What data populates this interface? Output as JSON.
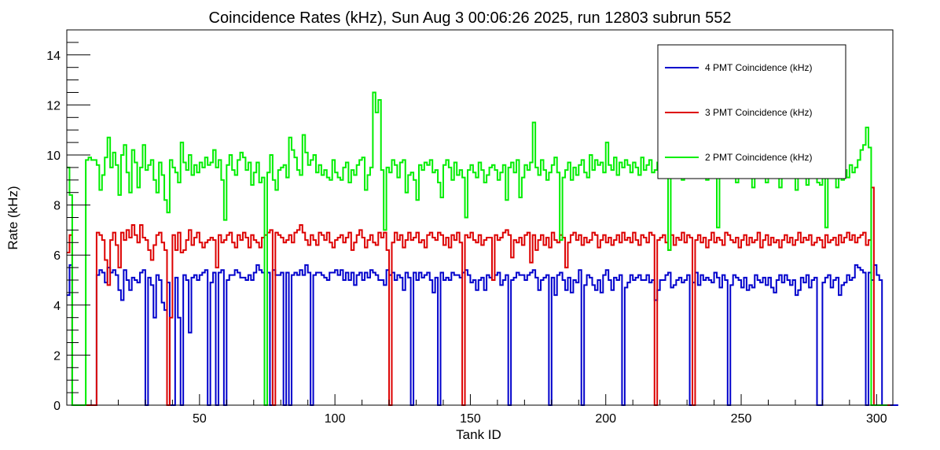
{
  "chart_data": {
    "type": "line",
    "title": "Coincidence Rates (kHz), Sun Aug  3 00:06:26 2025, run 12803 subrun 552",
    "xlabel": "Tank ID",
    "ylabel": "Rate (kHz)",
    "xlim": [
      1,
      306
    ],
    "ylim": [
      0,
      15
    ],
    "x_ticks": [
      50,
      100,
      150,
      200,
      250,
      300
    ],
    "y_ticks": [
      0,
      2,
      4,
      6,
      8,
      10,
      12,
      14
    ],
    "grid": false,
    "legend_position": "top-right",
    "bin_start": 1,
    "bin_width": 1,
    "series": [
      {
        "name": "4 PMT Coincidence (kHz)",
        "color": "#0000cc",
        "values": [
          4.4,
          5.6,
          0,
          0,
          0,
          0,
          0,
          0,
          0,
          0,
          0,
          5.2,
          5.4,
          5.3,
          4.9,
          5.5,
          5.3,
          5.4,
          5.2,
          4.6,
          4.2,
          5.4,
          5.0,
          4.6,
          5.1,
          5.0,
          4.9,
          5.3,
          5.4,
          0,
          5.1,
          4.8,
          3.5,
          5.2,
          5.0,
          4.1,
          3.8,
          4.9,
          0,
          0,
          5.1,
          3.5,
          0,
          5.2,
          5.0,
          2.9,
          5.1,
          5.2,
          5.0,
          5.2,
          5.3,
          5.4,
          0,
          4.9,
          5.3,
          0,
          5.3,
          5.4,
          0,
          5.0,
          5.2,
          5.2,
          5.4,
          5.3,
          5.1,
          5.1,
          5.0,
          5.2,
          5.0,
          5.3,
          5.6,
          5.4,
          5.3,
          0,
          5.3,
          0,
          5.4,
          5.2,
          5.2,
          5.3,
          0,
          5.3,
          0,
          5.2,
          5.3,
          5.2,
          5.4,
          5.2,
          5.6,
          5.3,
          0,
          5.2,
          5.3,
          5.3,
          5.2,
          5.1,
          5.0,
          5.3,
          5.3,
          5.4,
          5.2,
          5.4,
          5.0,
          5.3,
          5.0,
          5.3,
          4.8,
          5.2,
          5.3,
          5.0,
          5.3,
          5.1,
          5.4,
          5.3,
          5.2,
          5.0,
          5.0,
          4.8,
          5.4,
          5.2,
          5.3,
          5.0,
          5.2,
          5.1,
          4.6,
          5.3,
          5.1,
          0,
          5.3,
          5.0,
          5.3,
          5.1,
          5.2,
          5.3,
          5.0,
          4.5,
          5.1,
          0,
          5.3,
          5.0,
          5.1,
          5.0,
          5.3,
          5.2,
          5.2,
          5.1,
          5.3,
          5.4,
          5.2,
          4.9,
          5.0,
          4.6,
          5.0,
          5.1,
          4.6,
          5.2,
          5.1,
          5.0,
          5.2,
          5.3,
          4.8,
          5.0,
          5.2,
          0,
          5.0,
          5.1,
          5.3,
          5.2,
          5.2,
          5.0,
          5.2,
          5.3,
          5.4,
          5.1,
          4.6,
          5.0,
          5.1,
          5.2,
          0,
          5.1,
          4.4,
          5.2,
          5.3,
          5.0,
          4.6,
          5.1,
          4.5,
          5.0,
          4.9,
          5.4,
          0,
          4.8,
          5.2,
          5.1,
          4.8,
          4.6,
          5.0,
          4.5,
          5.2,
          5.4,
          5.0,
          4.6,
          5.1,
          5.0,
          5.2,
          0,
          4.7,
          4.9,
          5.2,
          5.0,
          5.1,
          5.2,
          5.0,
          5.0,
          5.2,
          4.9,
          5.0,
          4.2,
          4.6,
          5.0,
          5.0,
          5.2,
          5.3,
          4.7,
          4.8,
          5.0,
          5.1,
          4.9,
          5.0,
          5.2,
          0,
          4.9,
          5.3,
          4.8,
          5.2,
          5.0,
          5.1,
          5.0,
          4.9,
          5.3,
          5.1,
          4.7,
          5.2,
          5.0,
          0,
          4.8,
          5.2,
          5.1,
          5.0,
          4.7,
          5.1,
          4.6,
          4.8,
          4.7,
          5.2,
          5.0,
          4.9,
          5.1,
          4.8,
          5.1,
          4.7,
          4.5,
          5.0,
          5.2,
          4.9,
          5.2,
          5.0,
          4.8,
          5.0,
          4.4,
          4.6,
          5.1,
          4.9,
          5.2,
          4.7,
          5.0,
          5.1,
          0,
          0,
          4.9,
          5.1,
          5.2,
          4.7,
          5.0,
          5.1,
          4.4,
          4.8,
          4.9,
          5.2,
          5.0,
          5.1,
          5.6,
          5.5,
          5.4,
          5.3,
          0,
          5.3,
          5.0,
          5.6,
          5.2,
          5.0,
          0,
          0,
          0,
          0,
          0,
          0
        ]
      },
      {
        "name": "3 PMT Coincidence (kHz)",
        "color": "#dd0000",
        "values": [
          6.1,
          6.8,
          0,
          0,
          0,
          0,
          0,
          0,
          0,
          0,
          0,
          6.9,
          6.8,
          6.6,
          5.8,
          4.8,
          6.6,
          6.9,
          6.4,
          5.5,
          6.9,
          6.6,
          7.0,
          6.7,
          7.2,
          6.8,
          6.5,
          7.2,
          6.7,
          6.6,
          6.2,
          5.8,
          6.4,
          6.8,
          6.9,
          6.5,
          6.2,
          0,
          3.5,
          6.8,
          6.2,
          6.9,
          6.1,
          6.2,
          6.6,
          7.0,
          6.4,
          6.7,
          6.9,
          6.5,
          6.3,
          6.5,
          6.6,
          6.7,
          6.6,
          5.5,
          6.8,
          6.5,
          6.6,
          6.8,
          6.9,
          6.5,
          6.3,
          6.8,
          6.6,
          6.9,
          6.7,
          6.3,
          6.8,
          6.6,
          6.5,
          6.3,
          6.7,
          6.8,
          6.9,
          7.0,
          0,
          6.9,
          6.8,
          6.7,
          6.5,
          6.6,
          6.8,
          6.5,
          6.9,
          7.0,
          7.2,
          6.9,
          6.6,
          6.4,
          6.8,
          6.6,
          6.4,
          6.9,
          6.8,
          6.6,
          6.9,
          6.5,
          6.3,
          6.6,
          6.7,
          6.8,
          6.5,
          6.7,
          6.9,
          6.2,
          6.5,
          6.8,
          7.0,
          6.7,
          6.3,
          6.6,
          6.8,
          6.5,
          6.4,
          6.9,
          6.7,
          6.9,
          6.2,
          0,
          6.5,
          6.9,
          6.6,
          6.8,
          6.3,
          6.6,
          6.9,
          6.6,
          6.7,
          6.9,
          6.5,
          6.6,
          6.3,
          6.8,
          6.9,
          6.7,
          6.6,
          6.9,
          6.8,
          6.4,
          6.7,
          6.3,
          6.8,
          6.6,
          6.9,
          6.5,
          0,
          6.8,
          6.7,
          6.9,
          6.6,
          6.5,
          6.8,
          6.4,
          6.6,
          6.7,
          6.7,
          5.0,
          6.8,
          6.6,
          6.7,
          6.9,
          7.0,
          6.8,
          5.9,
          6.6,
          6.5,
          6.7,
          6.4,
          6.8,
          6.9,
          5.7,
          6.8,
          6.2,
          6.6,
          6.8,
          6.4,
          6.7,
          6.3,
          6.9,
          6.6,
          6.5,
          6.8,
          6.7,
          5.5,
          6.5,
          6.8,
          6.9,
          6.6,
          6.8,
          6.4,
          6.7,
          6.5,
          6.6,
          6.9,
          6.8,
          6.3,
          6.6,
          6.8,
          6.5,
          6.7,
          6.4,
          6.6,
          6.8,
          6.5,
          6.9,
          6.6,
          6.7,
          6.5,
          6.9,
          6.6,
          6.4,
          6.8,
          6.7,
          6.5,
          6.9,
          6.8,
          0,
          6.6,
          6.7,
          6.8,
          6.5,
          6.2,
          6.8,
          6.4,
          6.7,
          6.6,
          6.9,
          6.5,
          6.8,
          6.7,
          0,
          6.6,
          6.8,
          6.5,
          6.7,
          6.3,
          6.6,
          6.9,
          6.5,
          6.7,
          6.6,
          6.4,
          6.9,
          6.8,
          6.6,
          6.5,
          6.7,
          6.3,
          6.6,
          6.8,
          6.4,
          6.7,
          6.5,
          6.6,
          6.9,
          6.3,
          6.6,
          6.8,
          6.4,
          6.7,
          6.5,
          6.6,
          6.3,
          6.6,
          6.8,
          6.5,
          6.7,
          6.4,
          6.6,
          6.9,
          6.5,
          6.7,
          6.6,
          6.8,
          6.4,
          6.5,
          6.7,
          6.6,
          6.3,
          6.8,
          6.5,
          6.6,
          6.7,
          6.4,
          6.8,
          6.5,
          6.7,
          6.9,
          6.6,
          6.8,
          6.5,
          6.7,
          6.8,
          6.9,
          6.4,
          6.6,
          8.7,
          0,
          0,
          0,
          0,
          0,
          0
        ]
      },
      {
        "name": "2 PMT Coincidence (kHz)",
        "color": "#00ee00",
        "values": [
          9.5,
          8.4,
          0,
          0,
          0,
          0,
          0,
          9.8,
          9.9,
          9.8,
          9.8,
          9.6,
          8.6,
          9.2,
          9.9,
          10.7,
          9.5,
          10.1,
          9.6,
          8.4,
          10.0,
          10.4,
          9.3,
          8.5,
          10.2,
          9.7,
          8.7,
          9.5,
          10.4,
          9.4,
          9.6,
          9.8,
          9.0,
          8.5,
          9.7,
          9.2,
          8.2,
          7.7,
          9.8,
          9.5,
          9.3,
          8.9,
          10.5,
          9.7,
          9.4,
          10.0,
          9.2,
          9.6,
          9.3,
          9.7,
          9.5,
          9.9,
          9.6,
          9.7,
          10.2,
          9.5,
          9.8,
          9.0,
          7.4,
          9.6,
          10.0,
          9.4,
          9.2,
          9.8,
          10.1,
          9.9,
          9.4,
          9.7,
          8.8,
          9.3,
          9.7,
          8.9,
          9.1,
          0,
          9.3,
          10.0,
          9.0,
          8.6,
          9.4,
          9.5,
          9.6,
          9.1,
          10.7,
          10.2,
          9.9,
          9.4,
          9.2,
          10.8,
          10.1,
          9.6,
          9.8,
          10.0,
          9.3,
          9.6,
          9.2,
          9.4,
          9.1,
          9.0,
          9.8,
          9.3,
          9.1,
          9.0,
          9.5,
          9.7,
          8.9,
          9.4,
          9.2,
          9.6,
          9.8,
          9.9,
          8.6,
          9.2,
          9.5,
          12.5,
          11.7,
          12.2,
          9.4,
          7.0,
          9.5,
          9.3,
          9.8,
          9.6,
          9.1,
          9.7,
          9.8,
          8.5,
          9.2,
          9.3,
          9.0,
          8.2,
          9.6,
          9.4,
          9.7,
          9.6,
          9.8,
          9.3,
          9.4,
          8.9,
          8.3,
          9.6,
          9.8,
          9.5,
          9.0,
          9.7,
          9.2,
          9.4,
          9.1,
          7.5,
          9.4,
          9.6,
          9.3,
          9.1,
          9.7,
          9.4,
          8.9,
          9.2,
          9.5,
          9.6,
          9.4,
          9.0,
          9.3,
          9.6,
          8.2,
          9.5,
          9.7,
          9.3,
          9.8,
          8.3,
          9.1,
          9.6,
          9.4,
          9.7,
          11.3,
          9.5,
          9.2,
          9.8,
          9.4,
          9.0,
          9.3,
          9.6,
          9.9,
          9.3,
          6.6,
          9.1,
          9.4,
          9.7,
          9.0,
          9.5,
          9.2,
          9.6,
          9.8,
          9.3,
          9.1,
          10.0,
          9.4,
          9.8,
          9.6,
          9.7,
          9.3,
          10.5,
          9.6,
          9.4,
          9.9,
          9.2,
          9.7,
          9.5,
          9.8,
          9.6,
          9.3,
          9.7,
          9.5,
          9.2,
          9.9,
          9.4,
          9.6,
          9.8,
          9.3,
          9.4,
          9.7,
          9.1,
          9.5,
          9.6,
          6.2,
          9.6,
          9.4,
          9.2,
          9.7,
          9.0,
          9.5,
          9.3,
          9.8,
          9.1,
          9.6,
          9.4,
          9.7,
          9.5,
          9.0,
          9.3,
          9.6,
          9.4,
          7.1,
          9.7,
          9.5,
          9.3,
          9.6,
          9.2,
          9.4,
          8.9,
          9.3,
          9.5,
          9.6,
          9.4,
          9.7,
          8.7,
          9.1,
          9.2,
          9.4,
          9.3,
          8.9,
          9.2,
          9.5,
          9.3,
          9.1,
          8.7,
          9.3,
          9.5,
          9.4,
          9.6,
          9.2,
          8.6,
          9.3,
          9.5,
          9.2,
          8.8,
          9.4,
          9.6,
          9.3,
          8.9,
          8.8,
          9.1,
          7.1,
          9.5,
          9.2,
          9.6,
          8.7,
          9.3,
          9.0,
          9.4,
          9.1,
          9.6,
          9.3,
          9.5,
          9.8,
          10.2,
          10.4,
          11.1,
          10.3,
          0,
          0,
          0,
          0,
          0,
          0
        ]
      }
    ]
  }
}
